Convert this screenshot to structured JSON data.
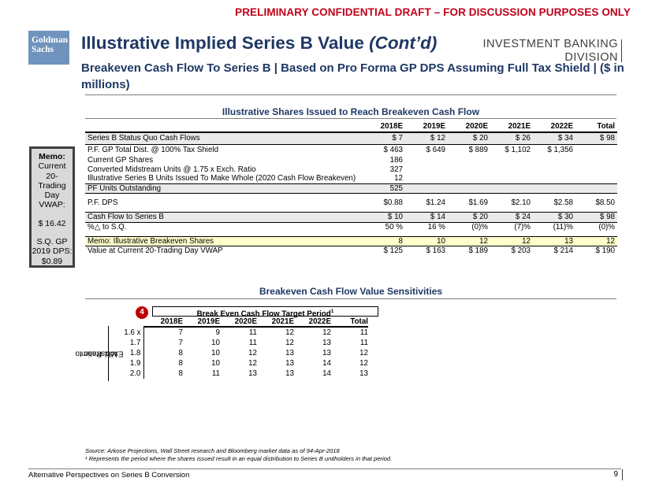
{
  "header": {
    "confidential": "PRELIMINARY CONFIDENTIAL DRAFT – FOR DISCUSSION PURPOSES ONLY",
    "logo_line1": "Goldman",
    "logo_line2": "Sachs",
    "title_main": "Illustrative Implied Series B Value ",
    "title_italic": "(Cont’d)",
    "subtitle": "Breakeven Cash Flow To Series B | Based on Pro Forma GP DPS Assuming Full Tax Shield | ($ in millions)",
    "division_line1": "INVESTMENT BANKING",
    "division_line2": "DIVISION"
  },
  "section1_title": "Illustrative Shares Issued to Reach Breakeven Cash Flow",
  "memo": {
    "head": "Memo:",
    "line1": "Current 20-",
    "line2": "Trading",
    "line3": "Day",
    "line4": "VWAP:",
    "vwap": "$ 16.42",
    "line5": "S.Q. GP",
    "line6": "2019 DPS:",
    "dps": "$0.89"
  },
  "main_table": {
    "headers": [
      "",
      "2018E",
      "2019E",
      "2020E",
      "2021E",
      "2022E",
      "Total"
    ],
    "rows": [
      {
        "label": "Series B Status Quo Cash Flows",
        "values": [
          "$ 7",
          "$ 12",
          "$ 20",
          "$ 26",
          "$ 34",
          "$ 98"
        ]
      },
      {
        "label": "P.F. GP Total Dist. @ 100% Tax Shield",
        "values": [
          "$ 463",
          "$ 649",
          "$ 889",
          "$ 1,102",
          "$ 1,356",
          ""
        ]
      },
      {
        "label": "Current GP Shares",
        "values": [
          "186",
          "",
          "",
          "",
          "",
          ""
        ]
      },
      {
        "label": "Converted Midstream Units @ 1.75 x Exch. Ratio",
        "values": [
          "327",
          "",
          "",
          "",
          "",
          ""
        ]
      },
      {
        "label": "Illustrative Series B Units Issued To Make Whole (2020 Cash Flow Breakeven)",
        "values": [
          "12",
          "",
          "",
          "",
          "",
          ""
        ]
      },
      {
        "label": "PF Units Outstanding",
        "values": [
          "525",
          "",
          "",
          "",
          "",
          ""
        ]
      },
      {
        "label": "P.F. DPS",
        "values": [
          "$0.88",
          "$1.24",
          "$1.69",
          "$2.10",
          "$2.58",
          "$8.50"
        ]
      },
      {
        "label": "Cash Flow to Series B",
        "values": [
          "$ 10",
          "$ 14",
          "$ 20",
          "$ 24",
          "$ 30",
          "$ 98"
        ]
      },
      {
        "label": "%△ to S.Q.",
        "values": [
          "50 %",
          "16 %",
          "(0)%",
          "(7)%",
          "(11)%",
          "(0)%"
        ]
      },
      {
        "label": "Memo: Illustrative Breakeven Shares",
        "values": [
          "8",
          "10",
          "12",
          "12",
          "13",
          "12"
        ]
      },
      {
        "label": "Value at Current 20-Trading Day VWAP",
        "values": [
          "$ 125",
          "$ 163",
          "$ 189",
          "$ 203",
          "$ 214",
          "$ 190"
        ]
      }
    ]
  },
  "section2_title": "Breakeven Cash Flow Value Sensitivities",
  "sensitivity": {
    "badge": "4",
    "header": "Break Even Cash Flow Target Period",
    "footnote_mark": "1",
    "axis_label_line1": "Exch. Ratio to",
    "axis_label_line2": "Midstream",
    "columns": [
      "2018E",
      "2019E",
      "2020E",
      "2021E",
      "2022E",
      "Total"
    ],
    "rows": [
      {
        "ratio": "1.6 x",
        "values": [
          "7",
          "9",
          "11",
          "12",
          "12",
          "11"
        ]
      },
      {
        "ratio": "1.7",
        "values": [
          "7",
          "10",
          "11",
          "12",
          "13",
          "11"
        ]
      },
      {
        "ratio": "1.8",
        "values": [
          "8",
          "10",
          "12",
          "13",
          "13",
          "12"
        ]
      },
      {
        "ratio": "1.9",
        "values": [
          "8",
          "10",
          "12",
          "13",
          "14",
          "12"
        ]
      },
      {
        "ratio": "2.0",
        "values": [
          "8",
          "11",
          "13",
          "13",
          "14",
          "13"
        ]
      }
    ]
  },
  "source_line": "Source: Arkose Projections, Wall Street research and Bloomberg market data as of 94-Apr-2018",
  "footnote_line": "¹ Represents the period where the shares issued result in an equal distribution to Series B unitholders in that period.",
  "footer": {
    "left": "Alternative Perspectives on Series B Conversion",
    "page": "9"
  }
}
